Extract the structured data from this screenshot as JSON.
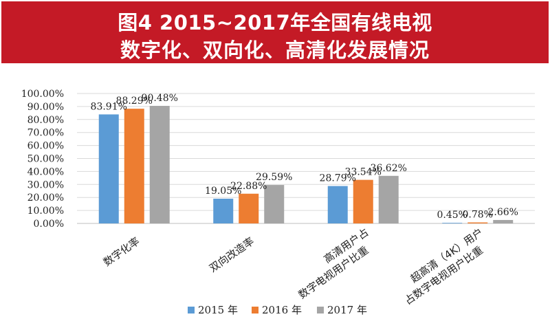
{
  "header": {
    "title_line1": "图4  2015~2017年全国有线电视",
    "title_line2": "数字化、双向化、高清化发展情况"
  },
  "colors": {
    "header_bg": "#c41a26",
    "series_2015": "#5b9bd5",
    "series_2016": "#ed7d31",
    "series_2017": "#a5a5a5"
  },
  "chart_data": {
    "type": "bar",
    "title": "图4 2015~2017年全国有线电视数字化、双向化、高清化发展情况",
    "categories": [
      [
        "数字化率"
      ],
      [
        "双向改造率"
      ],
      [
        "高清用户占",
        "数字电视用户比重"
      ],
      [
        "超高清（4K）用户",
        "占数字电视用户比重"
      ]
    ],
    "series": [
      {
        "name": "2015 年",
        "values": [
          83.91,
          19.05,
          28.79,
          0.45
        ],
        "labels": [
          "83.91%",
          "19.05%",
          "28.79%",
          "0.45%"
        ]
      },
      {
        "name": "2016 年",
        "values": [
          88.29,
          22.88,
          33.54,
          0.78
        ],
        "labels": [
          "88.29%",
          "22.88%",
          "33.54%",
          "0.78%"
        ]
      },
      {
        "name": "2017 年",
        "values": [
          90.48,
          29.59,
          36.62,
          2.66
        ],
        "labels": [
          "90.48%",
          "29.59%",
          "36.62%",
          "2.66%"
        ]
      }
    ],
    "yticks": [
      0,
      10,
      20,
      30,
      40,
      50,
      60,
      70,
      80,
      90,
      100
    ],
    "ytick_labels": [
      "0.00%",
      "10.00%",
      "20.00%",
      "30.00%",
      "40.00%",
      "50.00%",
      "60.00%",
      "70.00%",
      "80.00%",
      "90.00%",
      "100.00%"
    ],
    "ylim": [
      0,
      100
    ],
    "xlabel": "",
    "ylabel": "",
    "grid": true,
    "legend_position": "bottom"
  }
}
